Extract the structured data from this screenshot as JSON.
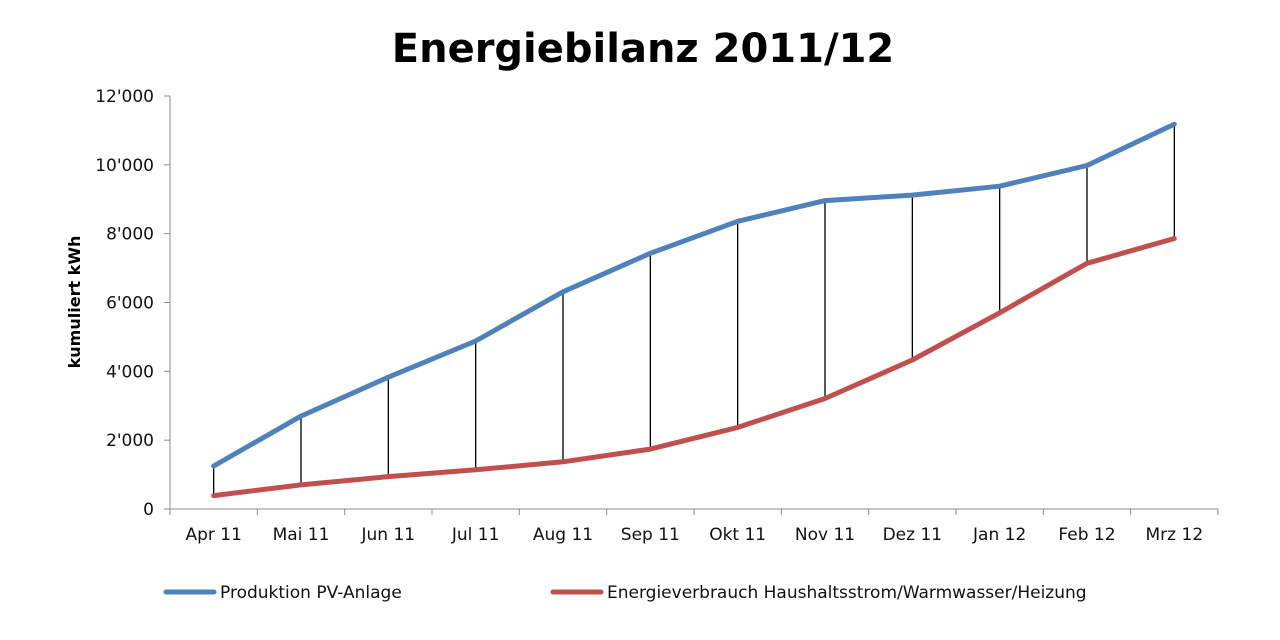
{
  "chart_data": {
    "type": "line",
    "title": "Energiebilanz 2011/12",
    "xlabel": "",
    "ylabel": "kumuliert kWh",
    "categories": [
      "Apr 11",
      "Mai 11",
      "Jun 11",
      "Jul 11",
      "Aug 11",
      "Sep 11",
      "Okt 11",
      "Nov 11",
      "Dez 11",
      "Jan 12",
      "Feb 12",
      "Mrz 12"
    ],
    "ylim": [
      0,
      12000
    ],
    "yticks": [
      {
        "value": 0,
        "label": "0"
      },
      {
        "value": 2000,
        "label": "2'000"
      },
      {
        "value": 4000,
        "label": "4'000"
      },
      {
        "value": 6000,
        "label": "6'000"
      },
      {
        "value": 8000,
        "label": "8'000"
      },
      {
        "value": 10000,
        "label": "10'000"
      },
      {
        "value": 12000,
        "label": "12'000"
      }
    ],
    "grid": false,
    "drop_lines": true,
    "legend_position": "bottom",
    "series": [
      {
        "name": "Produktion PV-Anlage",
        "color": "#4F81BD",
        "values": [
          1250,
          2700,
          3830,
          4880,
          6310,
          7430,
          8360,
          8960,
          9120,
          9380,
          9980,
          11180
        ]
      },
      {
        "name": "Energieverbrauch Haushaltsstrom/Warmwasser/Heizung",
        "color": "#C0504D",
        "values": [
          390,
          700,
          940,
          1140,
          1370,
          1740,
          2370,
          3210,
          4330,
          5700,
          7140,
          7860
        ]
      }
    ]
  }
}
